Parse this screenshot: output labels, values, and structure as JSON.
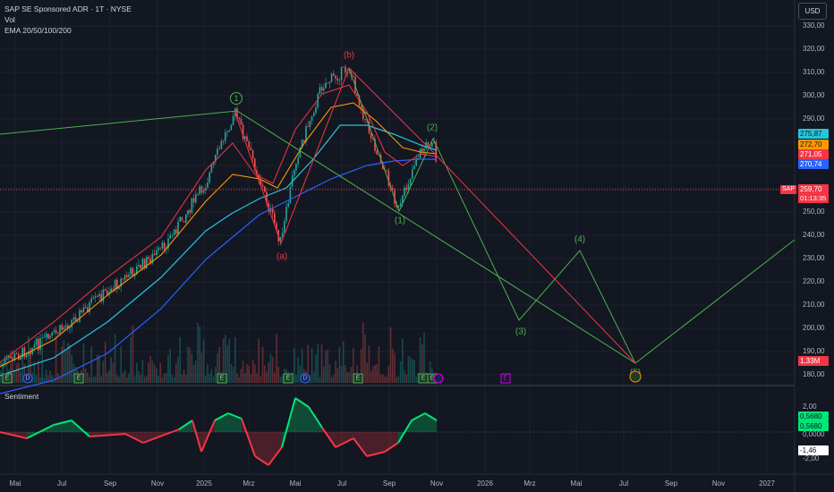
{
  "legend": {
    "symbol": "SAP SE Sponsored ADR · 1T · NYSE",
    "volume": "Vol",
    "ema": "EMA 20/50/100/200"
  },
  "currency": "USD",
  "price_axis": [
    "330,00",
    "320,00",
    "310,00",
    "300,00",
    "290,00",
    "250,00",
    "240,00",
    "230,00",
    "220,00",
    "210,00",
    "200,00",
    "190,00",
    "180,00"
  ],
  "ema_labels": [
    {
      "value": "275,87",
      "color": "#26c6da"
    },
    {
      "value": "272,70",
      "color": "#ff9800"
    },
    {
      "value": "271,05",
      "color": "#f23645"
    },
    {
      "value": "270,74",
      "color": "#2962ff"
    }
  ],
  "last_price": {
    "symbol": "SAP",
    "price": "259,70",
    "countdown": "01:13:35",
    "color": "#f23645"
  },
  "volume_label": "1,33M",
  "time_axis": [
    "Mai",
    "Jul",
    "Sep",
    "Nov",
    "2025",
    "Mrz",
    "Mai",
    "Jul",
    "Sep",
    "Nov",
    "2026",
    "Mrz",
    "Mai",
    "Jul",
    "Sep",
    "Nov",
    "2027"
  ],
  "elliott_labels": {
    "w1": "1",
    "wa": "(a)",
    "wb": "(b)",
    "w2": "(2)",
    "w1b": "(1)",
    "w3": "(3)",
    "w4": "(4)",
    "w5": "(5)",
    "w5circle": "5"
  },
  "events": [
    "E",
    "D",
    "E",
    "E",
    "E",
    "D",
    "E",
    "E",
    "E",
    "E"
  ],
  "sentiment": {
    "title": "Sentiment",
    "axis": [
      "2,00",
      "0,5680",
      "0,5680",
      "0,0000",
      "-1,46",
      "-2,00"
    ],
    "value_green": "0,5680",
    "value_white": "-1,46"
  },
  "colors": {
    "bg": "#131722",
    "up": "#26a69a",
    "down": "#ef5350",
    "wave_green": "#4caf50",
    "wave_red": "#f23645"
  }
}
